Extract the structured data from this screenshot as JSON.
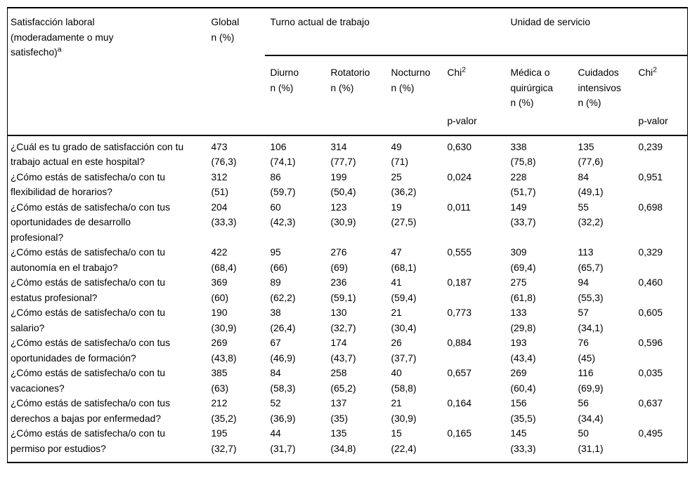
{
  "colors": {
    "text": "#000000",
    "border": "#000000",
    "background": "#ffffff"
  },
  "table": {
    "header": {
      "title_lines": [
        "Satisfacción laboral",
        "(moderadamente o muy",
        "satisfecho)"
      ],
      "title_footnote": "a",
      "global_label": "Global",
      "unit_label": "n (%)",
      "group_turno": "Turno actual de trabajo",
      "group_unidad": "Unidad de servicio",
      "sub_diurno": "Diurno",
      "sub_rotatorio": "Rotatorio",
      "sub_nocturno": "Nocturno",
      "sub_medica": "Médica o quirúrgica",
      "sub_cuidados": "Cuidados intensivos",
      "chi_label": "Chi",
      "chi_sup": "2",
      "pvalue_label": "p-valor"
    },
    "rows": [
      {
        "question": "¿Cuál es tu grado de satisfacción con tu trabajo actual en este hospital?",
        "global_n": "473",
        "global_pct": "(76,3)",
        "diurno_n": "106",
        "diurno_pct": "(74,1)",
        "rotatorio_n": "314",
        "rotatorio_pct": "(77,7)",
        "nocturno_n": "49",
        "nocturno_pct": "(71)",
        "chi_turno": "0,630",
        "medica_n": "338",
        "medica_pct": "(75,8)",
        "cuidados_n": "135",
        "cuidados_pct": "(77,6)",
        "chi_unidad": "0,239"
      },
      {
        "question": "¿Cómo estás de satisfecha/o con tu flexibilidad de horarios?",
        "global_n": "312",
        "global_pct": "(51)",
        "diurno_n": "86",
        "diurno_pct": "(59,7)",
        "rotatorio_n": "199",
        "rotatorio_pct": "(50,4)",
        "nocturno_n": "25",
        "nocturno_pct": "(36,2)",
        "chi_turno": "0,024",
        "medica_n": "228",
        "medica_pct": "(51,7)",
        "cuidados_n": "84",
        "cuidados_pct": "(49,1)",
        "chi_unidad": "0,951"
      },
      {
        "question": "¿Cómo estás de satisfecha/o con tus oportunidades de desarrollo profesional?",
        "global_n": "204",
        "global_pct": "(33,3)",
        "diurno_n": "60",
        "diurno_pct": "(42,3)",
        "rotatorio_n": "123",
        "rotatorio_pct": "(30,9)",
        "nocturno_n": "19",
        "nocturno_pct": "(27,5)",
        "chi_turno": "0,011",
        "medica_n": "149",
        "medica_pct": "(33,7)",
        "cuidados_n": "55",
        "cuidados_pct": "(32,2)",
        "chi_unidad": "0,698"
      },
      {
        "question": "¿Cómo estás de satisfecha/o con tu autonomía en el trabajo?",
        "global_n": "422",
        "global_pct": "(68,4)",
        "diurno_n": "95",
        "diurno_pct": "(66)",
        "rotatorio_n": "276",
        "rotatorio_pct": "(69)",
        "nocturno_n": "47",
        "nocturno_pct": "(68,1)",
        "chi_turno": "0,555",
        "medica_n": "309",
        "medica_pct": "(69,4)",
        "cuidados_n": "113",
        "cuidados_pct": "(65,7)",
        "chi_unidad": "0,329"
      },
      {
        "question": "¿Cómo estás de satisfecha/o con tu estatus profesional?",
        "global_n": "369",
        "global_pct": "(60)",
        "diurno_n": "89",
        "diurno_pct": "(62,2)",
        "rotatorio_n": "236",
        "rotatorio_pct": "(59,1)",
        "nocturno_n": "41",
        "nocturno_pct": "(59,4)",
        "chi_turno": "0,187",
        "medica_n": "275",
        "medica_pct": "(61,8)",
        "cuidados_n": "94",
        "cuidados_pct": "(55,3)",
        "chi_unidad": "0,460"
      },
      {
        "question": "¿Cómo estás de satisfecha/o con tu salario?",
        "global_n": "190",
        "global_pct": "(30,9)",
        "diurno_n": "38",
        "diurno_pct": "(26,4)",
        "rotatorio_n": "130",
        "rotatorio_pct": "(32,7)",
        "nocturno_n": "21",
        "nocturno_pct": "(30,4)",
        "chi_turno": "0,773",
        "medica_n": "133",
        "medica_pct": "(29,8)",
        "cuidados_n": "57",
        "cuidados_pct": "(34,1)",
        "chi_unidad": "0,605"
      },
      {
        "question": "¿Cómo estás de satisfecha/o con tus oportunidades de formación?",
        "global_n": "269",
        "global_pct": "(43,8)",
        "diurno_n": "67",
        "diurno_pct": "(46,9)",
        "rotatorio_n": "174",
        "rotatorio_pct": "(43,7)",
        "nocturno_n": "26",
        "nocturno_pct": "(37,7)",
        "chi_turno": "0,884",
        "medica_n": "193",
        "medica_pct": "(43,4)",
        "cuidados_n": "76",
        "cuidados_pct": "(45)",
        "chi_unidad": "0,596"
      },
      {
        "question": "¿Cómo estás de satisfecha/o con tu vacaciones?",
        "global_n": "385",
        "global_pct": "(63)",
        "diurno_n": "84",
        "diurno_pct": "(58,3)",
        "rotatorio_n": "258",
        "rotatorio_pct": "(65,2)",
        "nocturno_n": "40",
        "nocturno_pct": "(58,8)",
        "chi_turno": "0,657",
        "medica_n": "269",
        "medica_pct": "(60,4)",
        "cuidados_n": "116",
        "cuidados_pct": "(69,9)",
        "chi_unidad": "0,035"
      },
      {
        "question": "¿Cómo estás de satisfecha/o con tus derechos a bajas por enfermedad?",
        "global_n": "212",
        "global_pct": "(35,2)",
        "diurno_n": "52",
        "diurno_pct": "(36,9)",
        "rotatorio_n": "137",
        "rotatorio_pct": "(35)",
        "nocturno_n": "21",
        "nocturno_pct": "(30,9)",
        "chi_turno": "0,164",
        "medica_n": "156",
        "medica_pct": "(35,5)",
        "cuidados_n": "56",
        "cuidados_pct": "(34,4)",
        "chi_unidad": "0,637"
      },
      {
        "question": "¿Cómo estás de satisfecha/o con tu permiso por estudios?",
        "global_n": "195",
        "global_pct": "(32,7)",
        "diurno_n": "44",
        "diurno_pct": "(31,7)",
        "rotatorio_n": "135",
        "rotatorio_pct": "(34,8)",
        "nocturno_n": "15",
        "nocturno_pct": "(22,4)",
        "chi_turno": "0,165",
        "medica_n": "145",
        "medica_pct": "(33,3)",
        "cuidados_n": "50",
        "cuidados_pct": "(31,1)",
        "chi_unidad": "0,495"
      }
    ]
  }
}
